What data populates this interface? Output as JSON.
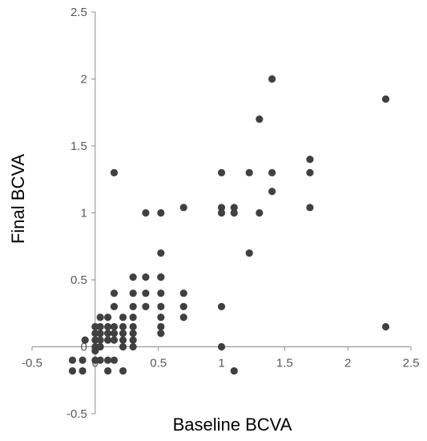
{
  "chart_data": {
    "type": "scatter",
    "title": "",
    "xlabel": "Baseline BCVA",
    "ylabel": "Final BCVA",
    "xlim": [
      -0.5,
      2.5
    ],
    "ylim": [
      -0.5,
      2.5
    ],
    "xticks": [
      -0.5,
      0,
      0.5,
      1,
      1.5,
      2,
      2.5
    ],
    "xtick_labels": [
      "-0.5",
      "0",
      "0.5",
      "1",
      "1.5",
      "2",
      "2.5"
    ],
    "yticks": [
      -0.5,
      0,
      0.5,
      1,
      1.5,
      2,
      2.5
    ],
    "ytick_labels": [
      "-0.5",
      "0",
      "0.5",
      "1",
      "1.5",
      "2",
      "2.5"
    ],
    "grid": false,
    "legend": "none",
    "marker_color": "#404040",
    "series": [
      {
        "points": [
          [
            -0.18,
            -0.1
          ],
          [
            -0.18,
            -0.18
          ],
          [
            -0.1,
            -0.1
          ],
          [
            -0.1,
            -0.18
          ],
          [
            -0.08,
            0.05
          ],
          [
            0.0,
            0.15
          ],
          [
            0.0,
            0.1
          ],
          [
            0.0,
            0.05
          ],
          [
            0.0,
            0.0
          ],
          [
            0.0,
            -0.03
          ],
          [
            0.0,
            -0.1
          ],
          [
            0.04,
            0.22
          ],
          [
            0.04,
            0.15
          ],
          [
            0.04,
            0.1
          ],
          [
            0.04,
            0.05
          ],
          [
            0.04,
            0.0
          ],
          [
            0.04,
            -0.1
          ],
          [
            0.1,
            0.22
          ],
          [
            0.1,
            0.15
          ],
          [
            0.1,
            0.1
          ],
          [
            0.1,
            0.05
          ],
          [
            0.1,
            -0.1
          ],
          [
            0.1,
            -0.18
          ],
          [
            0.15,
            1.3
          ],
          [
            0.15,
            0.4
          ],
          [
            0.15,
            0.3
          ],
          [
            0.15,
            0.15
          ],
          [
            0.15,
            0.1
          ],
          [
            0.15,
            0.05
          ],
          [
            0.15,
            -0.1
          ],
          [
            0.22,
            0.22
          ],
          [
            0.22,
            0.15
          ],
          [
            0.22,
            0.1
          ],
          [
            0.22,
            0.05
          ],
          [
            0.22,
            0.0
          ],
          [
            0.22,
            -0.18
          ],
          [
            0.3,
            0.52
          ],
          [
            0.3,
            0.4
          ],
          [
            0.3,
            0.3
          ],
          [
            0.3,
            0.22
          ],
          [
            0.3,
            0.15
          ],
          [
            0.3,
            0.1
          ],
          [
            0.3,
            0.05
          ],
          [
            0.3,
            0.0
          ],
          [
            0.4,
            1.0
          ],
          [
            0.4,
            0.52
          ],
          [
            0.4,
            0.4
          ],
          [
            0.4,
            0.3
          ],
          [
            0.52,
            1.0
          ],
          [
            0.52,
            0.7
          ],
          [
            0.52,
            0.52
          ],
          [
            0.52,
            0.52
          ],
          [
            0.52,
            0.4
          ],
          [
            0.52,
            0.3
          ],
          [
            0.52,
            0.22
          ],
          [
            0.52,
            0.15
          ],
          [
            0.52,
            0.1
          ],
          [
            0.7,
            1.04
          ],
          [
            0.7,
            0.4
          ],
          [
            0.7,
            0.3
          ],
          [
            0.7,
            0.22
          ],
          [
            1.0,
            1.3
          ],
          [
            1.0,
            1.04
          ],
          [
            1.0,
            1.0
          ],
          [
            1.0,
            0.3
          ],
          [
            1.0,
            0.0
          ],
          [
            1.1,
            1.04
          ],
          [
            1.1,
            1.0
          ],
          [
            1.1,
            -0.18
          ],
          [
            1.22,
            1.3
          ],
          [
            1.22,
            0.7
          ],
          [
            1.3,
            1.7
          ],
          [
            1.3,
            1.0
          ],
          [
            1.4,
            2.0
          ],
          [
            1.4,
            1.3
          ],
          [
            1.4,
            1.16
          ],
          [
            1.7,
            1.4
          ],
          [
            1.7,
            1.3
          ],
          [
            1.7,
            1.04
          ],
          [
            2.3,
            1.85
          ],
          [
            2.3,
            0.15
          ]
        ]
      }
    ]
  }
}
